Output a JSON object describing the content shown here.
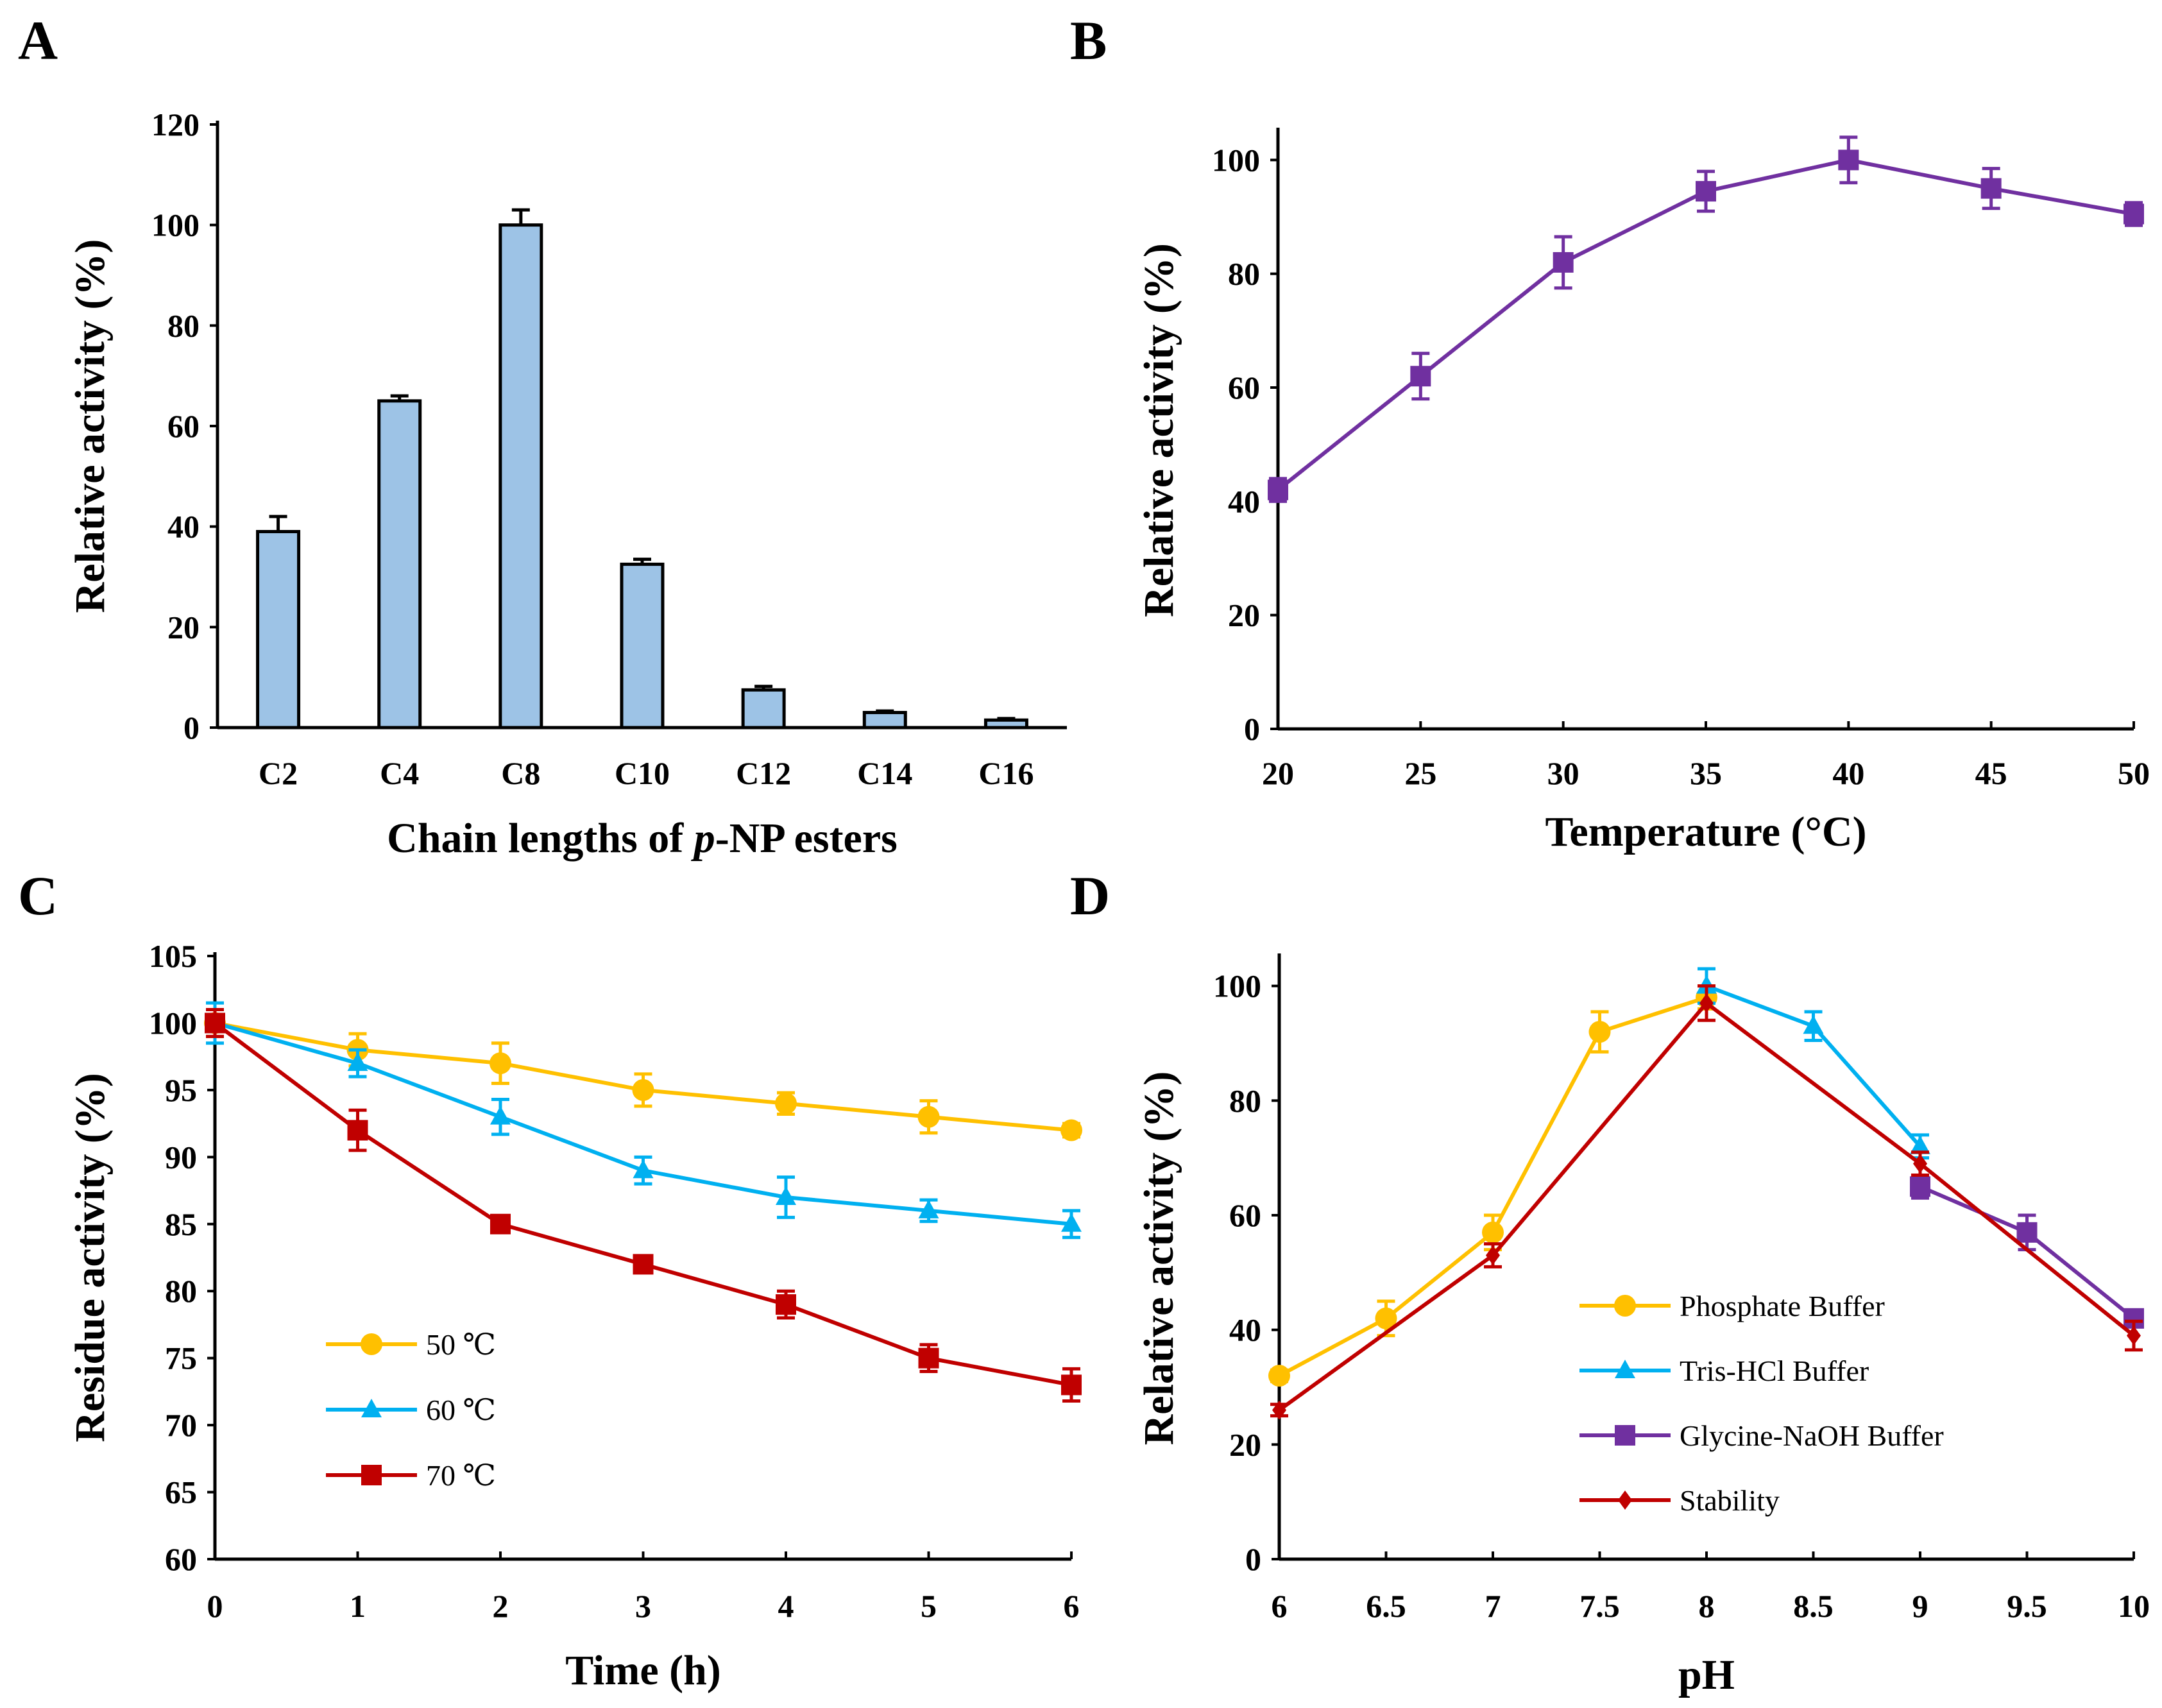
{
  "panel_labels": [
    "A",
    "B",
    "C",
    "D"
  ],
  "chart_data": [
    {
      "type": "bar",
      "panel": "A",
      "categories": [
        "C2",
        "C4",
        "C8",
        "C10",
        "C12",
        "C14",
        "C16"
      ],
      "values": [
        39,
        65,
        100,
        32.5,
        7.5,
        3,
        1.5
      ],
      "errors": [
        3,
        1,
        3,
        1,
        0.7,
        0.3,
        0.3
      ],
      "color": "#9DC3E6",
      "xlabel_parts": [
        "Chain lengths of ",
        "p",
        "-NP esters"
      ],
      "ylabel": "Relative activity (%)",
      "ylim": [
        0,
        120
      ],
      "yticks": [
        0,
        20,
        40,
        60,
        80,
        100,
        120
      ]
    },
    {
      "type": "line",
      "panel": "B",
      "xlabel": "Temperature (°C)",
      "ylabel": "Relative activity (%)",
      "xlim": [
        20,
        50
      ],
      "ylim": [
        0,
        105
      ],
      "xticks": [
        20,
        25,
        30,
        35,
        40,
        45,
        50
      ],
      "yticks": [
        0,
        20,
        40,
        60,
        80,
        100
      ],
      "series": [
        {
          "name": "Relative activity",
          "color": "#7030A0",
          "marker": "square",
          "x": [
            20,
            25,
            30,
            35,
            40,
            45,
            50
          ],
          "y": [
            42,
            62,
            82,
            94.5,
            100,
            95,
            90.5
          ],
          "err": [
            2,
            4,
            4.5,
            3.5,
            4,
            3.5,
            2
          ]
        }
      ]
    },
    {
      "type": "line",
      "panel": "C",
      "xlabel": "Time (h)",
      "ylabel": "Residue activity (%)",
      "xlim": [
        0,
        6
      ],
      "ylim": [
        60,
        105
      ],
      "xticks": [
        0,
        1,
        2,
        3,
        4,
        5,
        6
      ],
      "yticks": [
        60,
        65,
        70,
        75,
        80,
        85,
        90,
        95,
        100,
        105
      ],
      "legend": "center-left",
      "series": [
        {
          "name": "50 ℃",
          "color": "#FFC000",
          "marker": "circle",
          "x": [
            0,
            1,
            2,
            3,
            4,
            5,
            6
          ],
          "y": [
            100,
            98,
            97,
            95,
            94,
            93,
            92
          ],
          "err": [
            1,
            1.2,
            1.5,
            1.2,
            0.8,
            1.2,
            0.5
          ]
        },
        {
          "name": "60 ℃",
          "color": "#00B0F0",
          "marker": "triangle",
          "x": [
            0,
            1,
            2,
            3,
            4,
            5,
            6
          ],
          "y": [
            100,
            97,
            93,
            89,
            87,
            86,
            85
          ],
          "err": [
            1.5,
            1,
            1.3,
            1,
            1.5,
            0.8,
            1
          ]
        },
        {
          "name": "70 ℃",
          "color": "#C00000",
          "marker": "square",
          "x": [
            0,
            1,
            2,
            3,
            4,
            5,
            6
          ],
          "y": [
            100,
            92,
            85,
            82,
            79,
            75,
            73
          ],
          "err": [
            1,
            1.5,
            0.5,
            0.5,
            1,
            1,
            1.2
          ]
        }
      ]
    },
    {
      "type": "line",
      "panel": "D",
      "xlabel": "pH",
      "ylabel": "Relative activity (%)",
      "xlim": [
        6,
        10
      ],
      "ylim": [
        0,
        105
      ],
      "xticks": [
        6,
        6.5,
        7,
        7.5,
        8,
        8.5,
        9,
        9.5,
        10
      ],
      "yticks": [
        0,
        20,
        40,
        60,
        80,
        100
      ],
      "legend": "center",
      "series": [
        {
          "name": "Phosphate Buffer",
          "color": "#FFC000",
          "marker": "circle",
          "x": [
            6,
            6.5,
            7,
            7.5,
            8
          ],
          "y": [
            32,
            42,
            57,
            92,
            98
          ],
          "err": [
            1,
            3,
            3,
            3.5,
            2
          ]
        },
        {
          "name": "Tris-HCl Buffer",
          "color": "#00B0F0",
          "marker": "triangle",
          "x": [
            8,
            8.5,
            9
          ],
          "y": [
            100,
            93,
            72
          ],
          "err": [
            3,
            2.5,
            2
          ]
        },
        {
          "name": "Glycine-NaOH Buffer",
          "color": "#7030A0",
          "marker": "square",
          "x": [
            9,
            9.5,
            10
          ],
          "y": [
            65,
            57,
            42
          ],
          "err": [
            2,
            3,
            1
          ]
        },
        {
          "name": "Stability",
          "color": "#C00000",
          "marker": "diamond",
          "x": [
            6,
            7,
            8,
            9,
            10
          ],
          "y": [
            26,
            53,
            97,
            69,
            39
          ],
          "err": [
            1,
            2,
            3,
            2,
            2.5
          ]
        }
      ]
    }
  ]
}
